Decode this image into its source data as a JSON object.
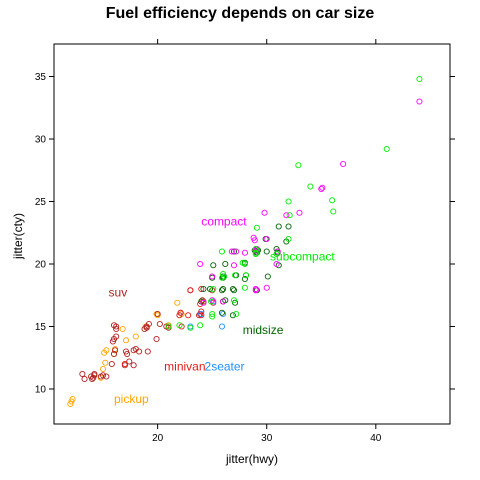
{
  "chart_data": {
    "type": "scatter",
    "title": "Fuel efficiency depends on car size",
    "xlabel": "jitter(hwy)",
    "ylabel": "jitter(cty)",
    "xlim": [
      10.5,
      46.8
    ],
    "ylim": [
      7.2,
      37.6
    ],
    "xticks": [
      20,
      30,
      40
    ],
    "yticks": [
      10,
      15,
      20,
      25,
      30,
      35
    ],
    "grid": false,
    "point_style": "open-circle",
    "groups": [
      {
        "name": "pickup",
        "color": "#FFA500",
        "label": {
          "text": "pickup",
          "x": 16.0,
          "y": 8.9
        },
        "points": [
          [
            12.1,
            9.0
          ],
          [
            12.0,
            8.8
          ],
          [
            12.2,
            9.2
          ],
          [
            14.8,
            10.9
          ],
          [
            15.0,
            11.6
          ],
          [
            15.2,
            12.1
          ],
          [
            15.1,
            12.9
          ],
          [
            15.3,
            13.1
          ],
          [
            16.0,
            12.8
          ],
          [
            16.1,
            13.2
          ],
          [
            16.8,
            14.8
          ],
          [
            17.1,
            13.9
          ],
          [
            17.0,
            12.0
          ],
          [
            18.0,
            14.2
          ],
          [
            18.9,
            15.0
          ],
          [
            19.9,
            16.0
          ],
          [
            20.0,
            15.9
          ],
          [
            21.0,
            15.1
          ],
          [
            21.8,
            16.9
          ],
          [
            22.2,
            16.0
          ]
        ]
      },
      {
        "name": "suv",
        "color": "#B22222",
        "label": {
          "text": "suv",
          "x": 15.5,
          "y": 17.4
        },
        "points": [
          [
            13.1,
            11.2
          ],
          [
            13.3,
            10.8
          ],
          [
            13.9,
            11.0
          ],
          [
            14.0,
            10.8
          ],
          [
            14.2,
            11.1
          ],
          [
            14.1,
            10.9
          ],
          [
            14.8,
            11.0
          ],
          [
            14.2,
            11.2
          ],
          [
            15.0,
            11.1
          ],
          [
            15.3,
            11.0
          ],
          [
            15.8,
            12.0
          ],
          [
            16.0,
            12.8
          ],
          [
            16.1,
            13.1
          ],
          [
            16.0,
            14.0
          ],
          [
            16.2,
            14.2
          ],
          [
            15.9,
            13.8
          ],
          [
            16.2,
            15.0
          ],
          [
            16.0,
            15.1
          ],
          [
            16.2,
            14.8
          ],
          [
            17.0,
            11.9
          ],
          [
            17.1,
            13.0
          ],
          [
            17.2,
            12.8
          ],
          [
            17.4,
            12.2
          ],
          [
            17.8,
            11.9
          ],
          [
            17.8,
            13.1
          ],
          [
            18.0,
            13.2
          ],
          [
            18.3,
            13.0
          ],
          [
            18.8,
            14.8
          ],
          [
            19.0,
            15.0
          ],
          [
            19.0,
            14.9
          ],
          [
            19.1,
            13.0
          ],
          [
            19.2,
            15.2
          ],
          [
            19.9,
            14.0
          ],
          [
            20.0,
            16.0
          ],
          [
            20.2,
            15.2
          ],
          [
            20.8,
            15.0
          ],
          [
            21.0,
            14.9
          ],
          [
            22.0,
            15.9
          ],
          [
            22.1,
            16.1
          ],
          [
            23.0,
            17.9
          ],
          [
            23.8,
            15.9
          ],
          [
            24.0,
            16.2
          ],
          [
            24.1,
            17.1
          ],
          [
            25.0,
            17.9
          ],
          [
            26.0,
            17.0
          ]
        ]
      },
      {
        "name": "minivan",
        "color": "#E41A1C",
        "label": {
          "text": "minivan",
          "x": 20.6,
          "y": 11.5
        },
        "points": [
          [
            17.0,
            12.0
          ],
          [
            22.1,
            16.1
          ],
          [
            23.0,
            17.9
          ],
          [
            23.9,
            16.0
          ],
          [
            24.0,
            15.9
          ],
          [
            24.2,
            17.0
          ],
          [
            25.1,
            16.9
          ],
          [
            24.0,
            18.0
          ],
          [
            23.9,
            16.8
          ],
          [
            22.8,
            15.9
          ],
          [
            22.2,
            15.0
          ]
        ]
      },
      {
        "name": "2seater",
        "color": "#1E90FF",
        "label": {
          "text": "2seater",
          "x": 24.3,
          "y": 11.5
        },
        "points": [
          [
            23.0,
            15.0
          ],
          [
            24.0,
            16.0
          ],
          [
            25.9,
            15.0
          ],
          [
            26.0,
            16.0
          ],
          [
            25.1,
            17.0
          ]
        ]
      },
      {
        "name": "midsize",
        "color": "#006400",
        "label": {
          "text": "midsize",
          "x": 27.8,
          "y": 14.4
        },
        "points": [
          [
            24.0,
            17.0
          ],
          [
            24.2,
            18.0
          ],
          [
            24.8,
            18.0
          ],
          [
            25.0,
            18.9
          ],
          [
            25.1,
            19.9
          ],
          [
            25.9,
            17.9
          ],
          [
            26.0,
            18.0
          ],
          [
            26.2,
            17.1
          ],
          [
            26.0,
            18.9
          ],
          [
            26.0,
            19.0
          ],
          [
            26.2,
            20.0
          ],
          [
            26.9,
            18.0
          ],
          [
            27.0,
            17.9
          ],
          [
            27.2,
            19.1
          ],
          [
            27.0,
            21.0
          ],
          [
            28.0,
            18.8
          ],
          [
            28.1,
            19.1
          ],
          [
            28.0,
            20.1
          ],
          [
            28.9,
            21.1
          ],
          [
            29.0,
            21.0
          ],
          [
            29.1,
            20.9
          ],
          [
            29.2,
            21.1
          ],
          [
            29.1,
            17.9
          ],
          [
            30.1,
            19.0
          ],
          [
            30.0,
            21.0
          ],
          [
            31.0,
            21.0
          ],
          [
            31.0,
            20.9
          ],
          [
            31.1,
            19.9
          ],
          [
            30.9,
            21.2
          ],
          [
            29.9,
            22.0
          ],
          [
            31.1,
            23.0
          ],
          [
            32.0,
            23.0
          ],
          [
            31.8,
            21.8
          ],
          [
            26.0,
            17.0
          ],
          [
            25.9,
            16.1
          ],
          [
            27.1,
            16.9
          ],
          [
            26.9,
            15.9
          ]
        ]
      },
      {
        "name": "compact",
        "color": "#FF00FF",
        "label": {
          "text": "compact",
          "x": 24.0,
          "y": 23.1
        },
        "points": [
          [
            24.2,
            16.9
          ],
          [
            23.9,
            20.0
          ],
          [
            25.0,
            17.1
          ],
          [
            25.0,
            19.0
          ],
          [
            26.0,
            17.0
          ],
          [
            26.1,
            19.0
          ],
          [
            26.8,
            21.0
          ],
          [
            27.0,
            19.9
          ],
          [
            27.2,
            21.0
          ],
          [
            28.0,
            20.9
          ],
          [
            28.9,
            21.9
          ],
          [
            28.8,
            22.1
          ],
          [
            29.1,
            21.2
          ],
          [
            29.1,
            21.0
          ],
          [
            29.0,
            18.0
          ],
          [
            29.0,
            17.9
          ],
          [
            30.0,
            18.1
          ],
          [
            30.0,
            22.0
          ],
          [
            31.0,
            21.0
          ],
          [
            30.9,
            20.0
          ],
          [
            31.8,
            23.9
          ],
          [
            33.0,
            24.1
          ],
          [
            35.0,
            26.0
          ],
          [
            35.1,
            26.1
          ],
          [
            37.0,
            28.0
          ],
          [
            44.0,
            33.0
          ],
          [
            29.8,
            24.1
          ]
        ]
      },
      {
        "name": "subcompact",
        "color": "#00EE00",
        "label": {
          "text": "subcompact",
          "x": 30.3,
          "y": 20.3
        },
        "points": [
          [
            21.0,
            15.0
          ],
          [
            22.0,
            15.1
          ],
          [
            23.0,
            14.9
          ],
          [
            23.9,
            15.1
          ],
          [
            24.9,
            17.0
          ],
          [
            25.0,
            16.0
          ],
          [
            25.1,
            18.0
          ],
          [
            25.9,
            18.9
          ],
          [
            26.0,
            19.2
          ],
          [
            26.1,
            19.0
          ],
          [
            25.9,
            21.0
          ],
          [
            27.0,
            17.1
          ],
          [
            27.1,
            19.1
          ],
          [
            27.8,
            20.1
          ],
          [
            28.0,
            20.0
          ],
          [
            28.1,
            19.1
          ],
          [
            28.0,
            18.1
          ],
          [
            29.0,
            20.9
          ],
          [
            29.0,
            20.8
          ],
          [
            29.0,
            21.2
          ],
          [
            29.1,
            22.9
          ],
          [
            30.9,
            20.8
          ],
          [
            32.0,
            22.0
          ],
          [
            32.1,
            23.9
          ],
          [
            32.0,
            25.0
          ],
          [
            32.9,
            27.9
          ],
          [
            34.0,
            26.2
          ],
          [
            36.1,
            24.2
          ],
          [
            36.0,
            25.1
          ],
          [
            41.0,
            29.2
          ],
          [
            44.0,
            34.8
          ],
          [
            27.2,
            16.0
          ],
          [
            25.0,
            15.8
          ]
        ]
      }
    ]
  }
}
